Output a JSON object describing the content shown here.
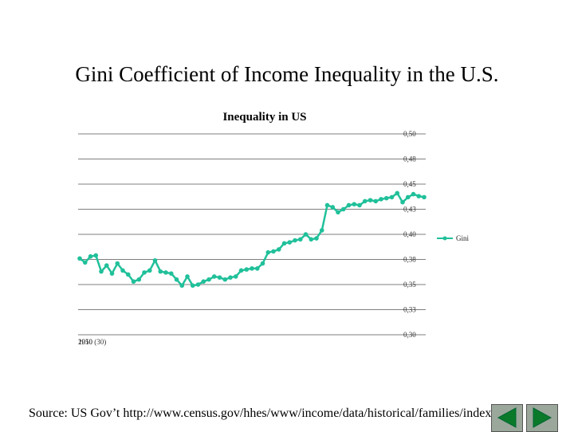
{
  "slide": {
    "title": "Gini Coefficient of Income Inequality in the U.S.",
    "source": "Source: US Gov’t http://www.census.gov/hhes/www/income/data/historical/families/index.htm"
  },
  "chart_data": {
    "type": "line",
    "title": "Inequality in US",
    "ylim": [
      0.3,
      0.5
    ],
    "y_ticks": [
      "0,50",
      "0,48",
      "0,45",
      "0,43",
      "0,40",
      "0,38",
      "0,35",
      "0,33",
      "0,30"
    ],
    "x_tick_label": "2010 (30)",
    "x_tick_label_overlap": "1950",
    "grid": true,
    "legend_position": "right",
    "series": [
      {
        "name": "Gini",
        "color": "#20c09a",
        "values": [
          0.376,
          0.372,
          0.378,
          0.379,
          0.363,
          0.369,
          0.361,
          0.371,
          0.364,
          0.36,
          0.353,
          0.355,
          0.362,
          0.364,
          0.374,
          0.363,
          0.362,
          0.361,
          0.355,
          0.349,
          0.358,
          0.349,
          0.35,
          0.353,
          0.355,
          0.358,
          0.357,
          0.355,
          0.357,
          0.358,
          0.364,
          0.365,
          0.366,
          0.366,
          0.371,
          0.382,
          0.383,
          0.385,
          0.391,
          0.392,
          0.394,
          0.395,
          0.4,
          0.395,
          0.396,
          0.404,
          0.429,
          0.427,
          0.422,
          0.425,
          0.429,
          0.43,
          0.429,
          0.433,
          0.434,
          0.433,
          0.435,
          0.436,
          0.437,
          0.441,
          0.432,
          0.437,
          0.44,
          0.438,
          0.437
        ]
      }
    ]
  }
}
